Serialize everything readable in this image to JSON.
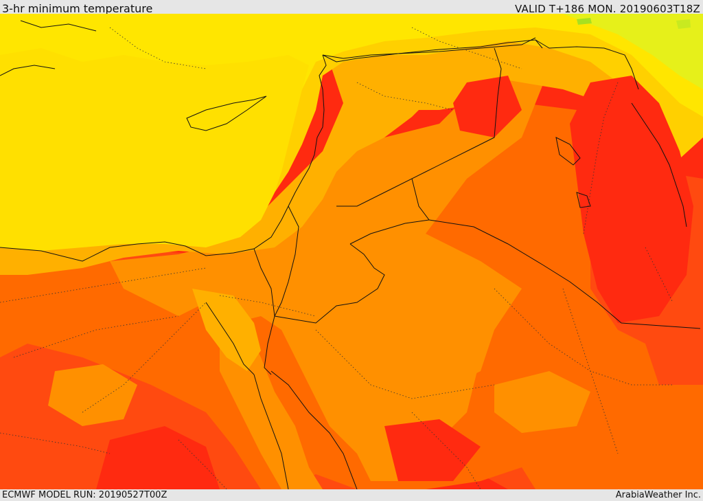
{
  "header": {
    "title": "3-hr minimum temperature",
    "valid": "VALID T+186 MON. 20190603T18Z"
  },
  "footer": {
    "model_run": "ECMWF MODEL RUN: 20190527T00Z",
    "credit": "ArabiaWeather Inc."
  },
  "palette": {
    "cool_green": "#a8e020",
    "yellow_green": "#e6f01a",
    "yellow": "#ffe600",
    "gold": "#ffd000",
    "light_orange": "#ffb000",
    "orange": "#ff9000",
    "dark_orange": "#ff6a00",
    "red_orange": "#ff4a10",
    "red": "#ff2a10"
  }
}
